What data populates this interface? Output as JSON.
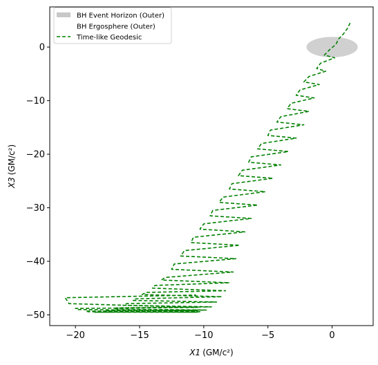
{
  "chart_data": {
    "type": "line",
    "xlabel": "X1",
    "xunit": "(GM/c²)",
    "ylabel": "X3",
    "yunit": "(GM/c²)",
    "xlim": [
      -22,
      3.2
    ],
    "ylim": [
      -52,
      7.5
    ],
    "xticks": [
      -20,
      -15,
      -10,
      -5,
      0
    ],
    "yticks": [
      0,
      -10,
      -20,
      -30,
      -40,
      -50
    ],
    "grid": false,
    "legend_position": "top-left",
    "legend": [
      {
        "name": "BH Event Horizon (Outer)",
        "kind": "patch",
        "color": "#c8c8c8"
      },
      {
        "name": "BH Ergosphere (Outer)",
        "kind": "patch",
        "color": "#ffffff"
      },
      {
        "name": "Time-like Geodesic",
        "kind": "dashed-line",
        "color": "#008000"
      }
    ],
    "event_horizon": {
      "center": [
        0,
        0
      ],
      "rx": 2.0,
      "ry": 1.9,
      "color": "#c8c8c8"
    },
    "geodesic": {
      "name": "Time-like Geodesic",
      "color": "#008000",
      "x": [
        1.4,
        1.2,
        0.9,
        0.5,
        0.3,
        -0.2,
        -0.6,
        0.2,
        -0.9,
        -1.2,
        -0.5,
        -1.8,
        -2.2,
        -1.0,
        -2.5,
        -2.8,
        -1.4,
        -3.2,
        -3.5,
        -1.8,
        -4.0,
        -4.3,
        -2.2,
        -4.8,
        -5.0,
        -2.8,
        -5.5,
        -5.8,
        -3.4,
        -6.3,
        -6.5,
        -4.0,
        -7.0,
        -7.3,
        -4.6,
        -7.8,
        -8.0,
        -5.2,
        -8.5,
        -8.8,
        -5.8,
        -9.3,
        -9.5,
        -6.3,
        -10.0,
        -10.3,
        -6.8,
        -10.8,
        -11.0,
        -7.2,
        -11.5,
        -11.8,
        -7.5,
        -12.3,
        -12.5,
        -7.7,
        -13.0,
        -13.3,
        -8.0,
        -13.8,
        -14.0,
        -8.3,
        -14.5,
        -14.8,
        -8.6,
        -15.3,
        -15.5,
        -9.0,
        -16.0,
        -16.3,
        -9.4,
        -16.8,
        -17.0,
        -9.8,
        -17.5,
        -17.8,
        -10.2,
        -18.2,
        -18.5,
        -10.5,
        -19.0,
        -19.2,
        -10.5,
        -19.8,
        -20.0,
        -10.5,
        -20.5,
        -20.8,
        -10.6
      ],
      "y": [
        4.5,
        3.5,
        2.5,
        1.5,
        0.5,
        -0.5,
        -1.5,
        -2.0,
        -3.0,
        -4.0,
        -4.5,
        -5.5,
        -6.5,
        -7.0,
        -8.0,
        -9.0,
        -9.5,
        -10.5,
        -11.5,
        -12.0,
        -13.0,
        -14.0,
        -14.5,
        -15.5,
        -16.5,
        -17.0,
        -18.0,
        -19.0,
        -19.5,
        -20.5,
        -21.5,
        -22.0,
        -23.0,
        -24.0,
        -24.5,
        -25.5,
        -26.5,
        -27.0,
        -28.0,
        -29.0,
        -29.5,
        -30.5,
        -31.5,
        -32.0,
        -33.0,
        -34.0,
        -34.5,
        -35.5,
        -36.5,
        -37.0,
        -38.0,
        -39.0,
        -39.5,
        -40.5,
        -41.5,
        -42.0,
        -43.0,
        -43.5,
        -44.0,
        -44.5,
        -45.0,
        -45.5,
        -45.8,
        -46.2,
        -46.6,
        -47.0,
        -47.3,
        -47.6,
        -47.9,
        -48.2,
        -48.5,
        -48.7,
        -48.9,
        -49.1,
        -49.2,
        -49.3,
        -49.4,
        -49.5,
        -49.5,
        -49.5,
        -49.4,
        -49.3,
        -49.2,
        -49.0,
        -48.8,
        -48.6,
        -47.9,
        -46.8,
        -46.3
      ]
    }
  }
}
